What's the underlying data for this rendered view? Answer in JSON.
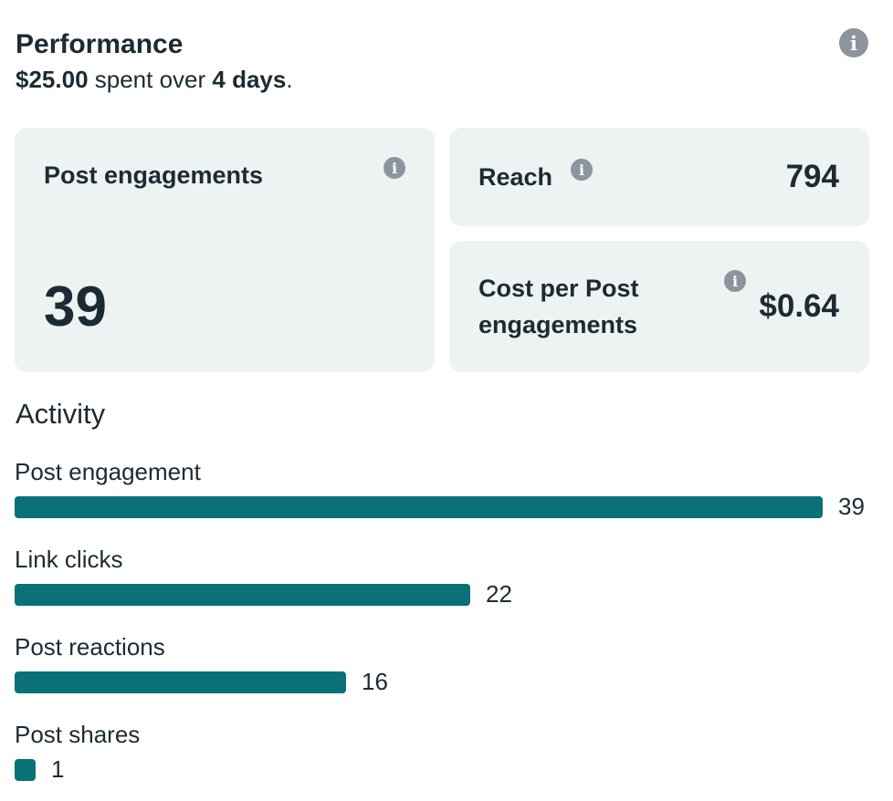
{
  "colors": {
    "bar": "#0a7178",
    "card_bg": "#edf2f2",
    "text": "#1c2b33",
    "info_icon": "#8d949e"
  },
  "header": {
    "title": "Performance",
    "spent": "$25.00",
    "spent_mid": " spent over ",
    "days": "4 days",
    "spent_end": "."
  },
  "metrics": {
    "post_engagements": {
      "label": "Post engagements",
      "value": "39"
    },
    "reach": {
      "label": "Reach",
      "value": "794"
    },
    "cost_per": {
      "label": "Cost per Post engagements",
      "value": "$0.64"
    }
  },
  "activity": {
    "title": "Activity",
    "max": 39,
    "items": [
      {
        "label": "Post engagement",
        "value": 39
      },
      {
        "label": "Link clicks",
        "value": 22
      },
      {
        "label": "Post reactions",
        "value": 16
      },
      {
        "label": "Post shares",
        "value": 1
      }
    ]
  },
  "icons": {
    "info": "info-icon"
  }
}
